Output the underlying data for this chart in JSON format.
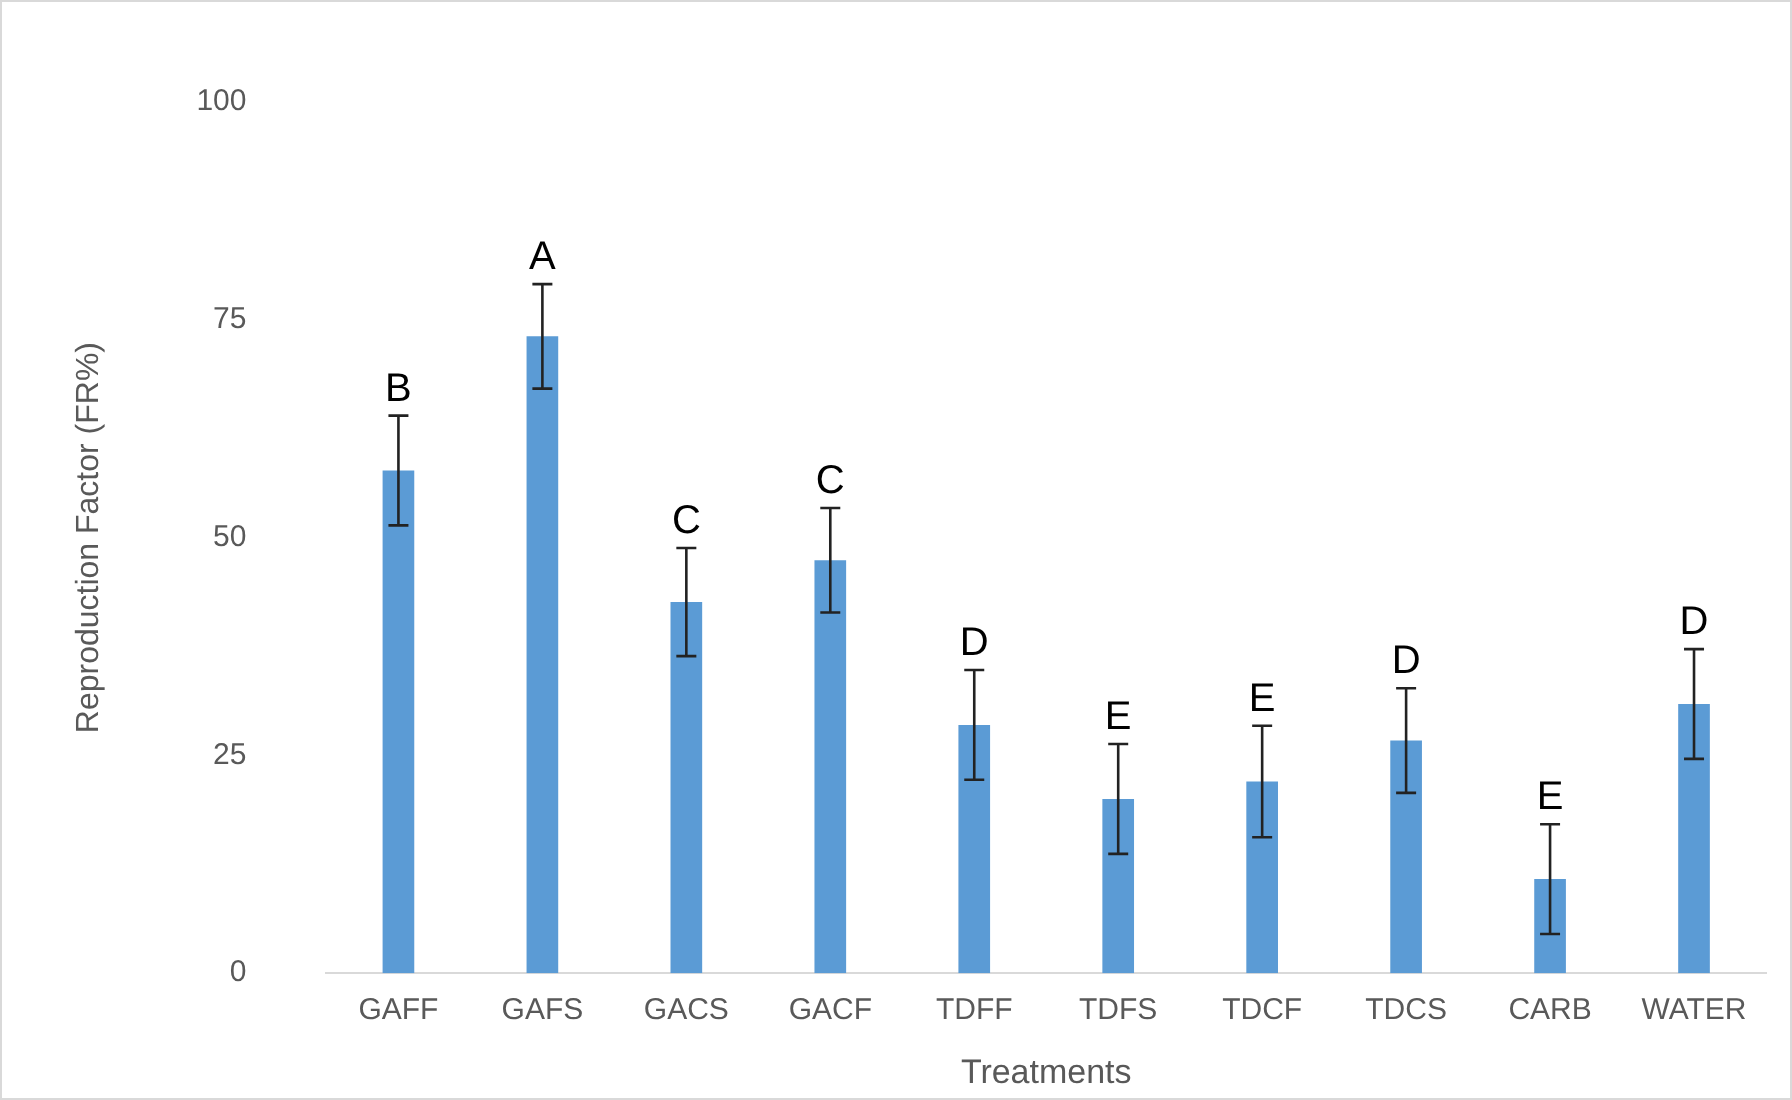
{
  "chart_data": {
    "type": "bar",
    "xlabel": "Treatments",
    "ylabel": "Reproduction Factor (FR%)",
    "categories": [
      "GAFF",
      "GAFS",
      "GACS",
      "GACF",
      "TDFF",
      "TDFS",
      "TDCF",
      "TDCS",
      "CARB",
      "WATER"
    ],
    "values": [
      57.7,
      73.1,
      42.6,
      47.4,
      28.5,
      20.0,
      22.0,
      26.7,
      10.8,
      30.9
    ],
    "errors": [
      6.3,
      6.0,
      6.2,
      6.0,
      6.3,
      6.3,
      6.4,
      6.0,
      6.3,
      6.3
    ],
    "color": "#5b9bd5",
    "ylim": [
      0,
      100
    ],
    "yticks": [
      0,
      25,
      50,
      75,
      100
    ],
    "grid": false,
    "legend": false,
    "annotations": [
      {
        "text": "B",
        "x": "GAFF",
        "y": 64.0
      },
      {
        "text": "A",
        "x": "GAFS",
        "y": 79.1
      },
      {
        "text": "C",
        "x": "GACS",
        "y": 48.8
      },
      {
        "text": "C",
        "x": "GACF",
        "y": 53.4
      },
      {
        "text": "D",
        "x": "TDFF",
        "y": 34.8
      },
      {
        "text": "E",
        "x": "TDFS",
        "y": 26.3
      },
      {
        "text": "E",
        "x": "TDCF",
        "y": 28.4
      },
      {
        "text": "D",
        "x": "TDCS",
        "y": 32.7
      },
      {
        "text": "E",
        "x": "CARB",
        "y": 17.1
      },
      {
        "text": "D",
        "x": "WATER",
        "y": 37.2
      }
    ]
  }
}
